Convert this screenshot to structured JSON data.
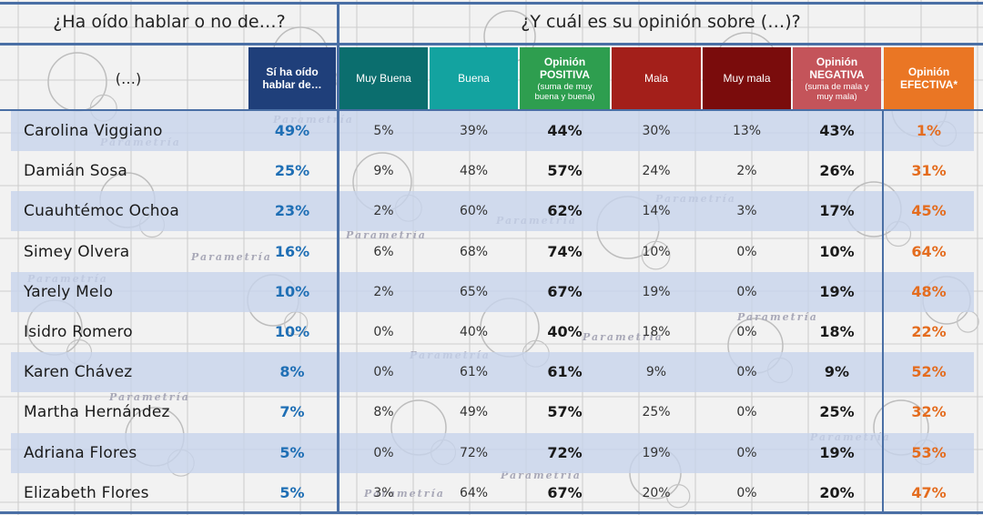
{
  "left_title": "¿Ha oído hablar o no de…?",
  "right_title": "¿Y cuál es su opinión sobre (…)?",
  "name_header": "(…)",
  "watermark": "Parametría",
  "colors": {
    "heard": "#1f3f7a",
    "muy_buena": "#0b6e6e",
    "buena": "#13a3a0",
    "positiva": "#2e9e4f",
    "mala": "#a31f1a",
    "muy_mala": "#7a0c0c",
    "negativa": "#c4545a",
    "efectiva": "#ea7624",
    "row_shade": "#c6d4ec",
    "heard_text": "#1f6fb5",
    "efectiva_text": "#e46c1e"
  },
  "headers": {
    "heard": {
      "l1": "Sí ha oído",
      "l2": "hablar de…"
    },
    "muy_buena": "Muy Buena",
    "buena": "Buena",
    "positiva": {
      "l1": "Opinión",
      "l2": "POSITIVA",
      "sub1": "(suma de muy",
      "sub2": "buena y buena)"
    },
    "mala": "Mala",
    "muy_mala": "Muy mala",
    "negativa": {
      "l1": "Opinión",
      "l2": "NEGATIVA",
      "sub1": "(suma de mala y",
      "sub2": "muy mala)"
    },
    "efectiva": {
      "l1": "Opinión",
      "l2": "EFECTIVA*"
    }
  },
  "chart_data": {
    "type": "table",
    "columns": [
      "(…)",
      "Sí ha oído hablar de…",
      "Muy Buena",
      "Buena",
      "Opinión POSITIVA",
      "Mala",
      "Muy mala",
      "Opinión NEGATIVA",
      "Opinión EFECTIVA*"
    ],
    "rows": [
      {
        "name": "Carolina Viggiano",
        "heard": "49%",
        "muy_buena": "5%",
        "buena": "39%",
        "positiva": "44%",
        "mala": "30%",
        "muy_mala": "13%",
        "negativa": "43%",
        "efectiva": "1%"
      },
      {
        "name": "Damián Sosa",
        "heard": "25%",
        "muy_buena": "9%",
        "buena": "48%",
        "positiva": "57%",
        "mala": "24%",
        "muy_mala": "2%",
        "negativa": "26%",
        "efectiva": "31%"
      },
      {
        "name": "Cuauhtémoc Ochoa",
        "heard": "23%",
        "muy_buena": "2%",
        "buena": "60%",
        "positiva": "62%",
        "mala": "14%",
        "muy_mala": "3%",
        "negativa": "17%",
        "efectiva": "45%"
      },
      {
        "name": "Simey Olvera",
        "heard": "16%",
        "muy_buena": "6%",
        "buena": "68%",
        "positiva": "74%",
        "mala": "10%",
        "muy_mala": "0%",
        "negativa": "10%",
        "efectiva": "64%"
      },
      {
        "name": "Yarely Melo",
        "heard": "10%",
        "muy_buena": "2%",
        "buena": "65%",
        "positiva": "67%",
        "mala": "19%",
        "muy_mala": "0%",
        "negativa": "19%",
        "efectiva": "48%"
      },
      {
        "name": "Isidro Romero",
        "heard": "10%",
        "muy_buena": "0%",
        "buena": "40%",
        "positiva": "40%",
        "mala": "18%",
        "muy_mala": "0%",
        "negativa": "18%",
        "efectiva": "22%"
      },
      {
        "name": "Karen Chávez",
        "heard": "8%",
        "muy_buena": "0%",
        "buena": "61%",
        "positiva": "61%",
        "mala": "9%",
        "muy_mala": "0%",
        "negativa": "9%",
        "efectiva": "52%"
      },
      {
        "name": "Martha Hernández",
        "heard": "7%",
        "muy_buena": "8%",
        "buena": "49%",
        "positiva": "57%",
        "mala": "25%",
        "muy_mala": "0%",
        "negativa": "25%",
        "efectiva": "32%"
      },
      {
        "name": "Adriana Flores",
        "heard": "5%",
        "muy_buena": "0%",
        "buena": "72%",
        "positiva": "72%",
        "mala": "19%",
        "muy_mala": "0%",
        "negativa": "19%",
        "efectiva": "53%"
      },
      {
        "name": "Elizabeth Flores",
        "heard": "5%",
        "muy_buena": "3%",
        "buena": "64%",
        "positiva": "67%",
        "mala": "20%",
        "muy_mala": "0%",
        "negativa": "20%",
        "efectiva": "47%"
      }
    ]
  }
}
